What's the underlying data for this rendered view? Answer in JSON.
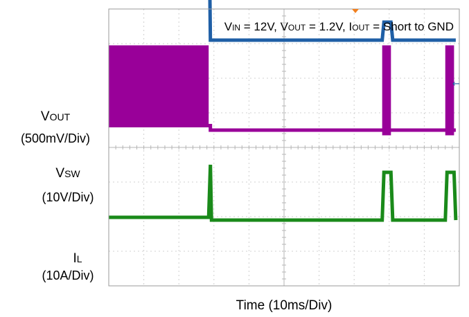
{
  "chart_data": {
    "type": "line",
    "title": {
      "v": "V",
      "v_sub": "IN",
      "eq1": " = 12V, ",
      "vout": "V",
      "vout_sub": "OUT",
      "eq2": " = 1.2V, ",
      "i": "I",
      "i_sub": "OUT",
      "eq3": " = Short to GND"
    },
    "xlabel": "Time  (10ms/Div)",
    "x_divisions": 10,
    "y_divisions": 8,
    "xlim_div": [
      0,
      10
    ],
    "ylim_div": [
      0,
      8
    ],
    "grid": true,
    "channels": [
      {
        "name": "V",
        "name_sub": "OUT",
        "scale": "(500mV/Div)",
        "color": "#1f5fa6",
        "points": [
          [
            0,
            7.42
          ],
          [
            2.85,
            7.42
          ],
          [
            2.9,
            3.1
          ],
          [
            7.8,
            3.1
          ],
          [
            7.85,
            3.62
          ],
          [
            8.05,
            3.62
          ],
          [
            8.1,
            3.1
          ],
          [
            9.9,
            3.1
          ]
        ]
      },
      {
        "name": "V",
        "name_sub": "SW",
        "scale": "(10V/Div)",
        "color": "#990099",
        "band": [
          [
            0,
            2.85,
            0.63,
            2.95
          ]
        ],
        "points": [
          [
            0,
            0.63
          ],
          [
            2.9,
            0.63
          ],
          [
            2.9,
            0.5
          ],
          [
            7.8,
            0.5
          ],
          [
            9.9,
            0.5
          ]
        ],
        "bursts": [
          [
            7.8,
            8.05
          ],
          [
            9.6,
            9.85
          ]
        ]
      },
      {
        "name": "I",
        "name_sub": "L",
        "scale": "(10A/Div)",
        "color": "#1a8a1a",
        "points": [
          [
            0,
            -2.02
          ],
          [
            2.85,
            -2.02
          ],
          [
            2.9,
            -0.5
          ],
          [
            2.93,
            -2.1
          ],
          [
            7.8,
            -2.1
          ],
          [
            7.85,
            -0.72
          ],
          [
            8.05,
            -0.72
          ],
          [
            8.1,
            -2.1
          ],
          [
            9.6,
            -2.1
          ],
          [
            9.65,
            -0.72
          ],
          [
            9.85,
            -0.72
          ],
          [
            9.9,
            -2.1
          ]
        ]
      }
    ]
  }
}
